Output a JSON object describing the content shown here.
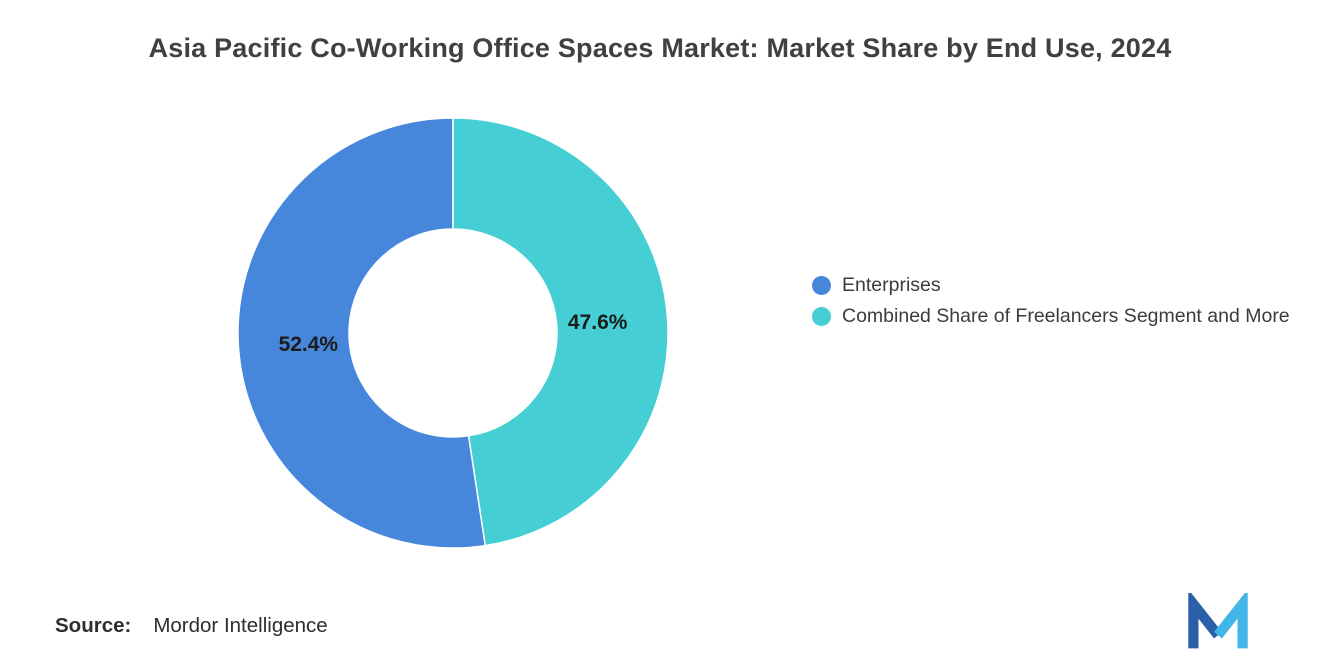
{
  "title": "Asia Pacific Co-Working Office Spaces Market: Market Share by End Use, 2024",
  "chart_data": {
    "type": "pie",
    "donut": true,
    "title": "Asia Pacific Co-Working Office Spaces Market: Market Share by End Use, 2024",
    "inner_radius_ratio": 0.4837,
    "start_angle_deg": 0,
    "direction": "counterclockwise",
    "legend_position": "right",
    "series": [
      {
        "name": "Enterprises",
        "value": 52.4,
        "label": "52.4%",
        "color": "#4787DB"
      },
      {
        "name": "Combined Share of Freelancers Segment and More",
        "value": 47.6,
        "label": "47.6%",
        "color": "#45CED4"
      }
    ]
  },
  "source": {
    "prefix": "Source:",
    "text": "Mordor Intelligence"
  },
  "logo": {
    "name": "mordor-intelligence-logo",
    "colors": {
      "dark": "#2B5FA8",
      "light": "#41B6E8"
    }
  }
}
